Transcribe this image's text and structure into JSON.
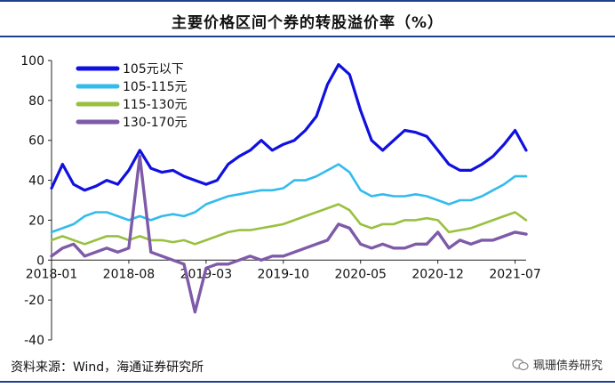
{
  "header": {
    "title": "主要价格区间个券的转股溢价率（%）"
  },
  "footer": {
    "source": "资料来源：Wind，海通证券研究所",
    "watermark": "珮珊债券研究"
  },
  "colors": {
    "series_1": "#1010e0",
    "series_2": "#33bbee",
    "series_3": "#99c040",
    "series_4": "#7e5aa8",
    "header_rule": "#1f3f8f"
  },
  "chart_data": {
    "type": "line",
    "title": "主要价格区间个券的转股溢价率（%）",
    "xlabel": "",
    "ylabel": "",
    "ylim": [
      -40,
      100
    ],
    "yticks": [
      "-40",
      "-20",
      "0",
      "20",
      "40",
      "60",
      "80",
      "100"
    ],
    "xticks": [
      "2018-01",
      "2018-08",
      "2019-03",
      "2019-10",
      "2020-05",
      "2020-12",
      "2021-07"
    ],
    "legend_position": "top-left",
    "x": [
      "2018-01",
      "2018-02",
      "2018-03",
      "2018-04",
      "2018-05",
      "2018-06",
      "2018-07",
      "2018-08",
      "2018-09",
      "2018-10",
      "2018-11",
      "2018-12",
      "2019-01",
      "2019-02",
      "2019-03",
      "2019-04",
      "2019-05",
      "2019-06",
      "2019-07",
      "2019-08",
      "2019-09",
      "2019-10",
      "2019-11",
      "2019-12",
      "2020-01",
      "2020-02",
      "2020-03",
      "2020-04",
      "2020-05",
      "2020-06",
      "2020-07",
      "2020-08",
      "2020-09",
      "2020-10",
      "2020-11",
      "2020-12",
      "2021-01",
      "2021-02",
      "2021-03",
      "2021-04",
      "2021-05",
      "2021-06",
      "2021-07",
      "2021-08"
    ],
    "series": [
      {
        "name": "105元以下",
        "values": [
          36,
          48,
          38,
          35,
          37,
          40,
          38,
          45,
          55,
          46,
          44,
          45,
          42,
          40,
          38,
          40,
          48,
          52,
          55,
          60,
          55,
          58,
          60,
          65,
          72,
          88,
          98,
          93,
          75,
          60,
          55,
          60,
          65,
          64,
          62,
          55,
          48,
          45,
          45,
          48,
          52,
          58,
          65,
          55
        ]
      },
      {
        "name": "105-115元",
        "values": [
          14,
          16,
          18,
          22,
          24,
          24,
          22,
          20,
          22,
          20,
          22,
          23,
          22,
          24,
          28,
          30,
          32,
          33,
          34,
          35,
          35,
          36,
          40,
          40,
          42,
          45,
          48,
          44,
          35,
          32,
          33,
          32,
          32,
          33,
          32,
          30,
          28,
          30,
          30,
          32,
          35,
          38,
          42,
          42
        ]
      },
      {
        "name": "115-130元",
        "values": [
          10,
          12,
          10,
          8,
          10,
          12,
          12,
          10,
          12,
          10,
          10,
          9,
          10,
          8,
          10,
          12,
          14,
          15,
          15,
          16,
          17,
          18,
          20,
          22,
          24,
          26,
          28,
          25,
          18,
          16,
          18,
          18,
          20,
          20,
          21,
          20,
          14,
          15,
          16,
          18,
          20,
          22,
          24,
          20
        ]
      },
      {
        "name": "130-170元",
        "values": [
          2,
          6,
          8,
          2,
          4,
          6,
          4,
          6,
          52,
          4,
          2,
          0,
          -2,
          -26,
          -4,
          -2,
          -2,
          0,
          2,
          0,
          2,
          2,
          4,
          6,
          8,
          10,
          18,
          16,
          8,
          6,
          8,
          6,
          6,
          8,
          8,
          14,
          6,
          10,
          8,
          10,
          10,
          12,
          14,
          13
        ]
      }
    ]
  }
}
